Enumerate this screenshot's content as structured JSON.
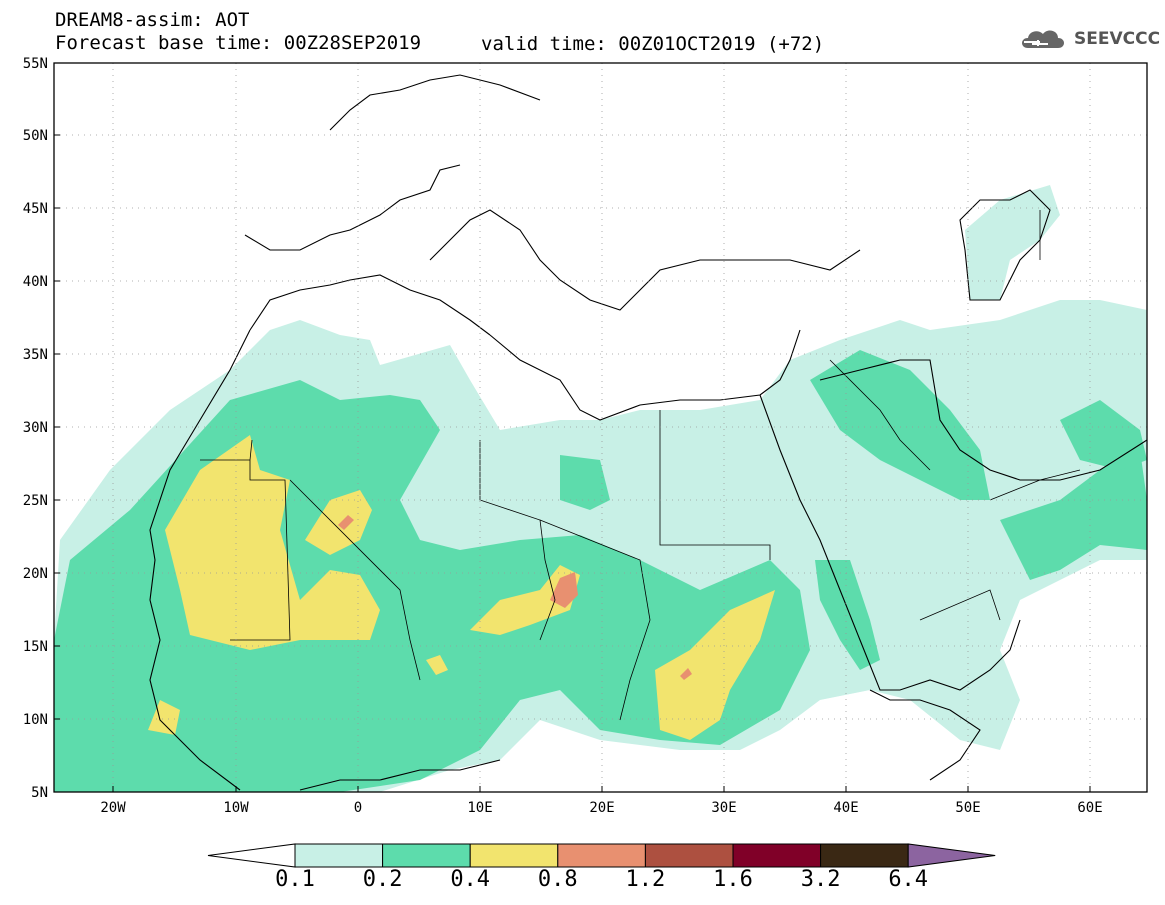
{
  "header": {
    "title": "DREAM8-assim: AOT",
    "base_time": "Forecast base time: 00Z28SEP2019",
    "valid_time": "valid time: 00Z01OCT2019 (+72)",
    "logo_text": "SEEVCCC",
    "logo_icon": "cloud-icon"
  },
  "map": {
    "projection": "lat-lon",
    "lon_range": [
      -25,
      65
    ],
    "lat_range": [
      5,
      55
    ],
    "lat_ticks": [
      "5N",
      "10N",
      "15N",
      "20N",
      "25N",
      "30N",
      "35N",
      "40N",
      "45N",
      "50N",
      "55N"
    ],
    "lon_ticks": [
      "20W",
      "10W",
      "0",
      "10E",
      "20E",
      "30E",
      "40E",
      "50E",
      "60E"
    ],
    "gridlines": "dotted"
  },
  "legend": {
    "type": "colorbar",
    "labels": [
      "0.1",
      "0.2",
      "0.4",
      "0.8",
      "1.2",
      "1.6",
      "3.2",
      "6.4"
    ],
    "colors": [
      "#ffffff",
      "#c8f0e6",
      "#5ddcac",
      "#f2e46e",
      "#e89070",
      "#ad5040",
      "#800028",
      "#3a2814",
      "#8c64a0"
    ]
  }
}
